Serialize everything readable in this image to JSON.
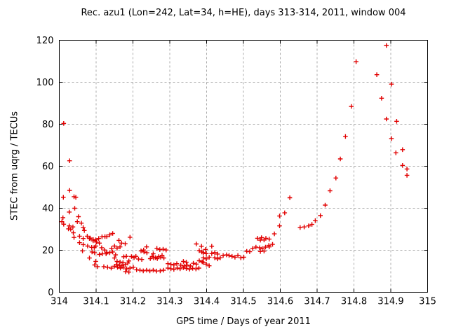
{
  "window": {
    "bg_color": "#ffffff"
  },
  "chart_data": {
    "type": "scatter",
    "title": "Rec. azu1 (Lon=242, Lat=34, h=HE), days 313-314, 2011, window 004",
    "xlabel": "GPS time / Days of year 2011",
    "ylabel": "STEC from uqrg / TECUs",
    "xlim": [
      314,
      315
    ],
    "ylim": [
      0,
      120
    ],
    "x_tick_values": [
      314,
      314.1,
      314.2,
      314.3,
      314.4,
      314.5,
      314.6,
      314.7,
      314.8,
      314.9,
      315
    ],
    "x_tick_labels": [
      "314",
      "314.1",
      "314.2",
      "314.3",
      "314.4",
      "314.5",
      "314.6",
      "314.7",
      "314.8",
      "314.9",
      "315"
    ],
    "y_tick_values": [
      0,
      20,
      40,
      60,
      80,
      100,
      120
    ],
    "y_tick_labels": [
      "0",
      "20",
      "40",
      "60",
      "80",
      "100",
      "120"
    ],
    "grid": true,
    "legend": "none",
    "marker": "plus",
    "marker_color": "#e10000",
    "grid_color": "#ababab",
    "frame_color": "#000000",
    "series_name": "STEC",
    "points": [
      [
        314.012,
        80.4
      ],
      [
        314.028,
        62.6
      ],
      [
        314.028,
        48.5
      ],
      [
        314.011,
        45.2
      ],
      [
        314.04,
        45.5
      ],
      [
        314.045,
        45.2
      ],
      [
        314.042,
        40.0
      ],
      [
        314.027,
        38.2
      ],
      [
        314.01,
        35.5
      ],
      [
        314.052,
        36.0
      ],
      [
        314.007,
        33.6
      ],
      [
        314.049,
        33.6
      ],
      [
        314.012,
        32.4
      ],
      [
        314.06,
        32.9
      ],
      [
        314.027,
        31.6
      ],
      [
        314.037,
        31.1
      ],
      [
        314.065,
        30.8
      ],
      [
        314.031,
        30.0
      ],
      [
        314.025,
        30.2
      ],
      [
        314.068,
        29.4
      ],
      [
        314.038,
        28.3
      ],
      [
        314.04,
        26.1
      ],
      [
        314.055,
        26.7
      ],
      [
        314.065,
        25.6
      ],
      [
        314.076,
        26.7
      ],
      [
        314.082,
        25.6
      ],
      [
        314.084,
        25.8
      ],
      [
        314.092,
        25.1
      ],
      [
        314.099,
        25.0
      ],
      [
        314.092,
        24.5
      ],
      [
        314.055,
        23.6
      ],
      [
        314.101,
        23.9
      ],
      [
        314.109,
        23.4
      ],
      [
        314.065,
        22.7
      ],
      [
        314.077,
        22.0
      ],
      [
        314.088,
        21.4
      ],
      [
        314.099,
        22.0
      ],
      [
        314.095,
        21.3
      ],
      [
        314.115,
        21.2
      ],
      [
        314.063,
        19.7
      ],
      [
        314.089,
        19.2
      ],
      [
        314.096,
        18.8
      ],
      [
        314.107,
        25.6
      ],
      [
        314.116,
        26.4
      ],
      [
        314.124,
        26.5
      ],
      [
        314.129,
        26.5
      ],
      [
        314.137,
        27.3
      ],
      [
        314.145,
        28.0
      ],
      [
        314.109,
        18.0
      ],
      [
        314.117,
        18.3
      ],
      [
        314.127,
        18.3
      ],
      [
        314.137,
        18.8
      ],
      [
        314.145,
        19.2
      ],
      [
        314.123,
        20.1
      ],
      [
        314.129,
        19.0
      ],
      [
        314.142,
        20.9
      ],
      [
        314.15,
        22.0
      ],
      [
        314.15,
        16.3
      ],
      [
        314.153,
        17.8
      ],
      [
        314.082,
        16.3
      ],
      [
        314.099,
        14.7
      ],
      [
        314.096,
        13.0
      ],
      [
        314.104,
        12.2
      ],
      [
        314.121,
        12.2
      ],
      [
        314.131,
        11.9
      ],
      [
        314.141,
        11.5
      ],
      [
        314.15,
        12.4
      ],
      [
        314.157,
        21.0
      ],
      [
        314.165,
        21.6
      ],
      [
        314.179,
        23.1
      ],
      [
        314.192,
        26.2
      ],
      [
        314.162,
        24.7
      ],
      [
        314.169,
        23.4
      ],
      [
        314.175,
        16.9
      ],
      [
        314.182,
        17.1
      ],
      [
        314.157,
        14.7
      ],
      [
        314.165,
        14.4
      ],
      [
        314.173,
        14.1
      ],
      [
        314.189,
        14.9
      ],
      [
        314.186,
        13.9
      ],
      [
        314.155,
        13.2
      ],
      [
        314.163,
        12.8
      ],
      [
        314.17,
        12.6
      ],
      [
        314.179,
        13.2
      ],
      [
        314.196,
        17.0
      ],
      [
        314.203,
        16.5
      ],
      [
        314.158,
        11.9
      ],
      [
        314.166,
        11.5
      ],
      [
        314.174,
        11.9
      ],
      [
        314.183,
        11.2
      ],
      [
        314.192,
        11.5
      ],
      [
        314.201,
        11.9
      ],
      [
        314.18,
        9.8
      ],
      [
        314.189,
        9.6
      ],
      [
        314.222,
        19.7
      ],
      [
        314.23,
        19.2
      ],
      [
        314.237,
        21.6
      ],
      [
        314.238,
        18.8
      ],
      [
        314.255,
        18.3
      ],
      [
        314.208,
        17.1
      ],
      [
        314.215,
        15.8
      ],
      [
        314.224,
        15.6
      ],
      [
        314.247,
        16.0
      ],
      [
        314.256,
        16.3
      ],
      [
        314.266,
        16.0
      ],
      [
        314.275,
        16.7
      ],
      [
        314.284,
        16.3
      ],
      [
        314.252,
        17.0
      ],
      [
        314.261,
        16.5
      ],
      [
        314.27,
        17.0
      ],
      [
        314.279,
        17.6
      ],
      [
        314.265,
        20.9
      ],
      [
        314.273,
        20.3
      ],
      [
        314.282,
        20.5
      ],
      [
        314.29,
        20.1
      ],
      [
        314.229,
        20.1
      ],
      [
        314.21,
        10.7
      ],
      [
        314.219,
        10.5
      ],
      [
        314.228,
        10.2
      ],
      [
        314.237,
        10.5
      ],
      [
        314.246,
        10.2
      ],
      [
        314.255,
        10.5
      ],
      [
        314.264,
        10.1
      ],
      [
        314.274,
        10.2
      ],
      [
        314.283,
        10.5
      ],
      [
        314.295,
        13.6
      ],
      [
        314.303,
        13.3
      ],
      [
        314.311,
        13.0
      ],
      [
        314.319,
        13.6
      ],
      [
        314.295,
        11.5
      ],
      [
        314.303,
        11.2
      ],
      [
        314.311,
        10.9
      ],
      [
        314.32,
        11.5
      ],
      [
        314.328,
        11.2
      ],
      [
        314.337,
        11.7
      ],
      [
        314.345,
        11.3
      ],
      [
        314.354,
        11.0
      ],
      [
        314.362,
        11.4
      ],
      [
        314.371,
        11.1
      ],
      [
        314.379,
        11.5
      ],
      [
        314.33,
        12.9
      ],
      [
        314.339,
        12.5
      ],
      [
        314.347,
        12.9
      ],
      [
        314.356,
        12.5
      ],
      [
        314.364,
        13.8
      ],
      [
        314.372,
        13.4
      ],
      [
        314.337,
        14.7
      ],
      [
        314.345,
        14.3
      ],
      [
        314.372,
        23.0
      ],
      [
        314.386,
        21.9
      ],
      [
        314.38,
        19.8
      ],
      [
        314.387,
        19.2
      ],
      [
        314.38,
        15.0
      ],
      [
        314.388,
        14.5
      ],
      [
        314.414,
        21.9
      ],
      [
        314.397,
        20.4
      ],
      [
        314.391,
        18.9
      ],
      [
        314.399,
        18.4
      ],
      [
        314.414,
        18.4
      ],
      [
        314.422,
        18.9
      ],
      [
        314.43,
        18.2
      ],
      [
        314.407,
        16.7
      ],
      [
        314.399,
        15.9
      ],
      [
        314.391,
        16.4
      ],
      [
        314.391,
        14.2
      ],
      [
        314.399,
        13.4
      ],
      [
        314.407,
        12.6
      ],
      [
        314.422,
        16.4
      ],
      [
        314.43,
        15.9
      ],
      [
        314.437,
        16.4
      ],
      [
        314.445,
        17.5
      ],
      [
        314.454,
        17.8
      ],
      [
        314.461,
        17.5
      ],
      [
        314.469,
        17.1
      ],
      [
        314.477,
        16.7
      ],
      [
        314.485,
        17.5
      ],
      [
        314.493,
        16.4
      ],
      [
        314.501,
        16.7
      ],
      [
        314.509,
        19.5
      ],
      [
        314.517,
        19.3
      ],
      [
        314.525,
        20.8
      ],
      [
        314.534,
        21.5
      ],
      [
        314.544,
        21.2
      ],
      [
        314.551,
        20.8
      ],
      [
        314.56,
        21.5
      ],
      [
        314.569,
        22.3
      ],
      [
        314.579,
        22.8
      ],
      [
        314.538,
        25.7
      ],
      [
        314.549,
        26.0
      ],
      [
        314.561,
        25.7
      ],
      [
        314.546,
        19.4
      ],
      [
        314.556,
        19.6
      ],
      [
        314.546,
        24.8
      ],
      [
        314.556,
        24.9
      ],
      [
        314.57,
        25.3
      ],
      [
        314.57,
        21.6
      ],
      [
        314.584,
        27.8
      ],
      [
        314.598,
        31.6
      ],
      [
        314.598,
        36.3
      ],
      [
        314.612,
        37.8
      ],
      [
        314.626,
        45.0
      ],
      [
        314.654,
        30.8
      ],
      [
        314.665,
        31.1
      ],
      [
        314.677,
        31.6
      ],
      [
        314.686,
        32.3
      ],
      [
        314.695,
        34.1
      ],
      [
        314.709,
        36.5
      ],
      [
        314.722,
        41.5
      ],
      [
        314.735,
        48.3
      ],
      [
        314.751,
        54.4
      ],
      [
        314.763,
        63.5
      ],
      [
        314.777,
        74.2
      ],
      [
        314.793,
        88.5
      ],
      [
        314.806,
        109.8
      ],
      [
        314.862,
        103.6
      ],
      [
        314.875,
        92.4
      ],
      [
        314.888,
        117.5
      ],
      [
        314.888,
        82.5
      ],
      [
        314.902,
        99.1
      ],
      [
        314.902,
        73.2
      ],
      [
        314.914,
        66.4
      ],
      [
        314.916,
        81.4
      ],
      [
        314.932,
        67.9
      ],
      [
        314.932,
        60.4
      ],
      [
        314.944,
        58.7
      ],
      [
        314.944,
        55.7
      ]
    ]
  }
}
